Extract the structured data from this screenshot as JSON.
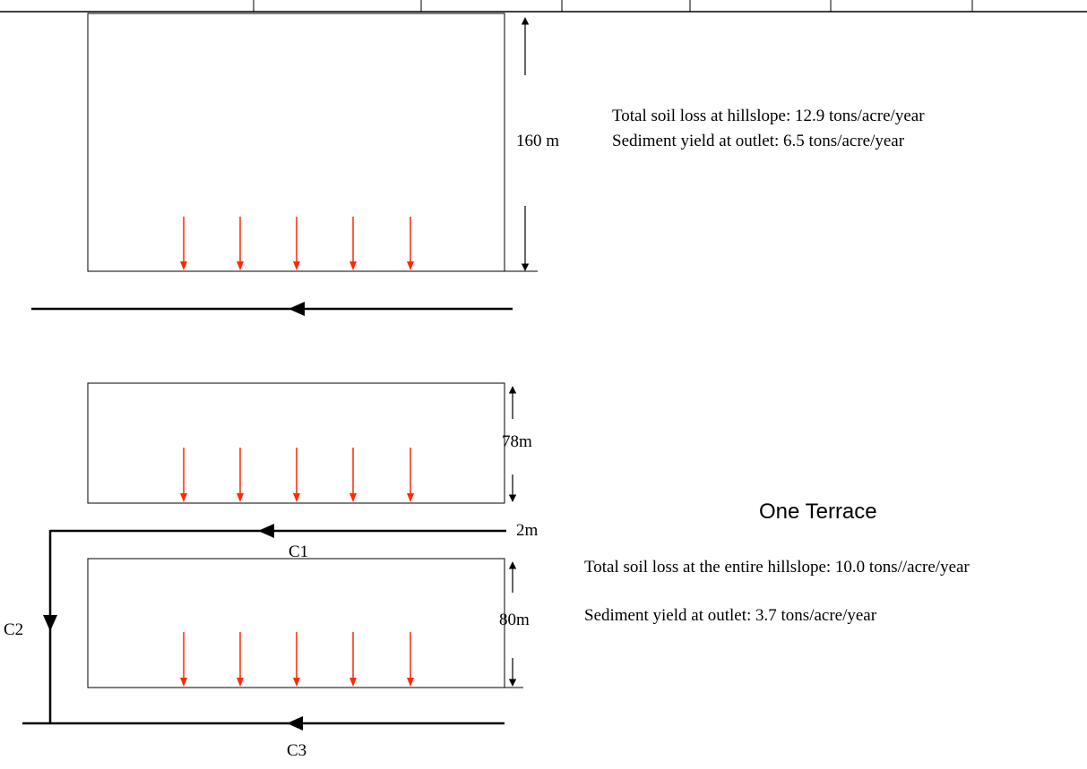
{
  "top_panel": {
    "height_label": "160 m",
    "soil_loss_text": "Total soil loss at hillslope: 12.9 tons/acre/year",
    "sediment_text": "Sediment yield at outlet: 6.5 tons/acre/year"
  },
  "bottom_panel": {
    "upper_height_label": "78m",
    "terrace_width_label": "2m",
    "lower_height_label": "80m",
    "channel_labels": [
      "C1",
      "C2",
      "C3"
    ],
    "title": "One Terrace",
    "soil_loss_text": "Total soil loss at the entire hillslope: 10.0 tons//acre/year",
    "sediment_text": "Sediment yield at outlet: 3.7 tons/acre/year"
  },
  "colors": {
    "flow_arrow": "#ff2a00",
    "line": "#000000"
  }
}
